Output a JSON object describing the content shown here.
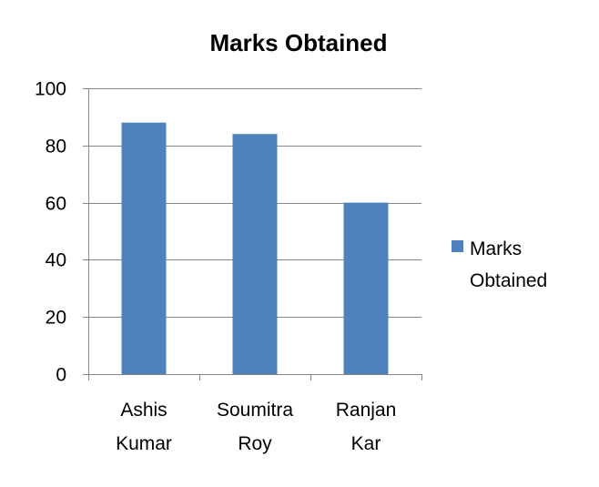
{
  "chart_data": {
    "type": "bar",
    "title": "Marks Obtained",
    "xlabel": "",
    "ylabel": "",
    "categories": [
      [
        "Ashis",
        "Kumar"
      ],
      [
        "Soumitra",
        "Roy"
      ],
      [
        "Ranjan",
        "Kar"
      ]
    ],
    "series": [
      {
        "name": [
          "Marks",
          "Obtained"
        ],
        "values": [
          88,
          84,
          60
        ],
        "color": "#4f81bd"
      }
    ],
    "ylim": [
      0,
      100
    ],
    "yticks": [
      "0",
      "20",
      "40",
      "60",
      "80",
      "100"
    ],
    "ytick_values": [
      0,
      20,
      40,
      60,
      80,
      100
    ],
    "grid": true,
    "legend_position": "right",
    "colors": {
      "bar": "#4f81bd",
      "grid": "#868686",
      "axis": "#868686"
    }
  }
}
